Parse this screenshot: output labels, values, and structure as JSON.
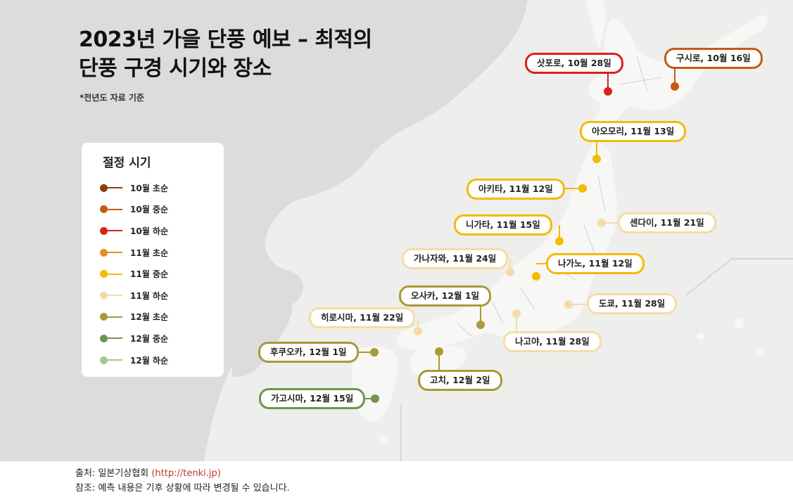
{
  "title": {
    "line1": "2023년 가을 단풍 예보 – 최적의",
    "line2": "단풍 구경 시기와 장소",
    "note": "*전년도 자료 기준"
  },
  "legend": {
    "title": "절정 시기",
    "items": [
      {
        "label": "10월 초순",
        "color": "#8b3f12"
      },
      {
        "label": "10월 중순",
        "color": "#c65a12"
      },
      {
        "label": "10월 하순",
        "color": "#d9211c"
      },
      {
        "label": "11월 초순",
        "color": "#ec8a28"
      },
      {
        "label": "11월 중순",
        "color": "#f2bb05"
      },
      {
        "label": "11월 하순",
        "color": "#f5dca6"
      },
      {
        "label": "12월 초순",
        "color": "#a89a35"
      },
      {
        "label": "12월 중순",
        "color": "#6e9550"
      },
      {
        "label": "12월 하순",
        "color": "#a5c98c"
      }
    ]
  },
  "locations": [
    {
      "label": "삿포로, 10월 28일",
      "color": "#d9211c"
    },
    {
      "label": "구시로, 10월 16일",
      "color": "#c65a12"
    },
    {
      "label": "아오모리, 11월 13일",
      "color": "#f2bb05"
    },
    {
      "label": "아키타, 11월 12일",
      "color": "#f2bb05"
    },
    {
      "label": "센다이, 11월 21일",
      "color": "#f5dca6"
    },
    {
      "label": "니가타, 11월 15일",
      "color": "#f2bb05"
    },
    {
      "label": "가나자와, 11월 24일",
      "color": "#f5dca6"
    },
    {
      "label": "나가노, 11월 12일",
      "color": "#f2bb05"
    },
    {
      "label": "오사카, 12월 1일",
      "color": "#a89a35"
    },
    {
      "label": "도쿄, 11월 28일",
      "color": "#f5dca6"
    },
    {
      "label": "히로시마, 11월 22일",
      "color": "#f5dca6"
    },
    {
      "label": "나고야, 11월 28일",
      "color": "#f5dca6"
    },
    {
      "label": "후쿠오카, 12월 1일",
      "color": "#a89a35"
    },
    {
      "label": "고치, 12월 2일",
      "color": "#a89a35"
    },
    {
      "label": "가고시마, 12월 15일",
      "color": "#6e9550"
    }
  ],
  "footer": {
    "source_label": "출처: 일본기상협회",
    "source_link": "(http://tenki.jp)",
    "note": "참조: 예측 내용은 기후 상황에 따라 변경될 수 있습니다."
  }
}
